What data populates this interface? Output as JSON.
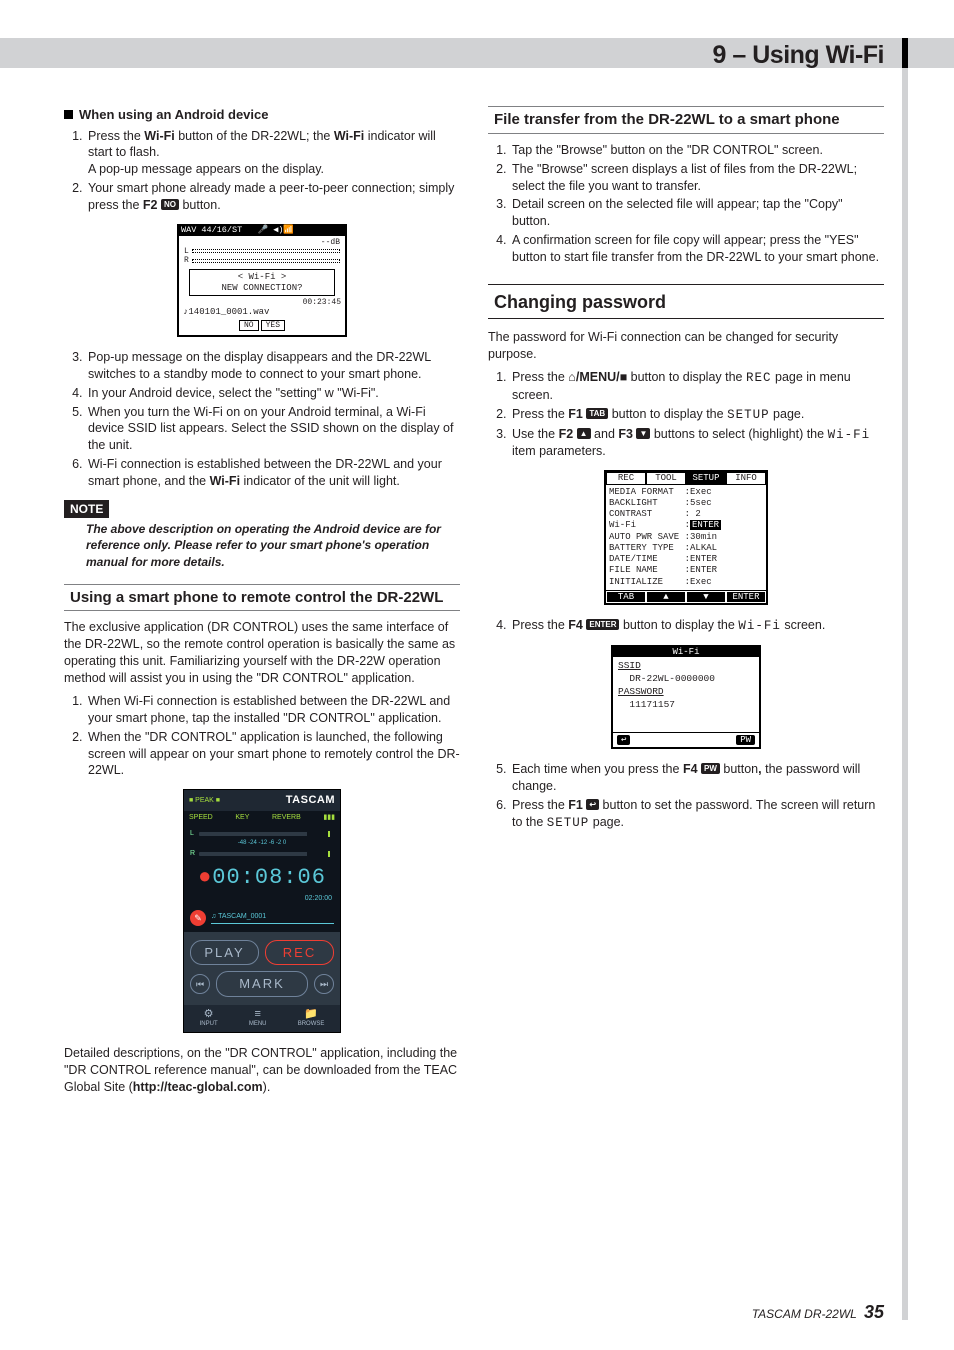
{
  "header": {
    "title": "9 – Using Wi-Fi"
  },
  "left": {
    "android_heading": "When using an Android device",
    "step1_a": "Press the ",
    "step1_b": "Wi-Fi",
    "step1_c": " button of the DR-22WL; the ",
    "step1_d": "Wi-Fi",
    "step1_e": " indicator will start to flash.",
    "step1_sub": "A pop-up message appears on the display.",
    "step2_a": "Your smart phone already made a peer-to-peer connection; simply press the ",
    "step2_b": "F2",
    "step2_c": " button.",
    "popup": {
      "top": "WAV 44/16/ST   🎤 ◀)📶",
      "db": "--dB",
      "dlg1": "< Wi-Fi >",
      "dlg2": "NEW CONNECTION?",
      "stat": "00:23:45",
      "file": "♪140101_0001.wav",
      "btn_no": "NO",
      "btn_yes": "YES"
    },
    "step3": "Pop-up message on the display disappears and the DR-22WL switches to a standby mode to connect to your smart phone.",
    "step4": "In your Android device, select the \"setting\" w \"Wi-Fi\".",
    "step5": "When you turn the Wi-Fi on on your Android terminal, a Wi-Fi device SSID list appears. Select the SSID shown on the display of the unit.",
    "step6_a": "Wi-Fi connection is established between the DR-22WL and your smart phone, and the ",
    "step6_b": "Wi-Fi",
    "step6_c": " indicator of the unit will light.",
    "note_label": "NOTE",
    "note_text": "The above description on operating the Android device are for reference only. Please refer to your smart phone's operation manual for more details.",
    "remote_heading": "Using a smart phone to remote control the DR-22WL",
    "remote_intro": "The exclusive application (DR CONTROL) uses the same interface of the DR-22WL, so the remote control operation is basically the same as operating this unit. Familiarizing yourself with the DR-22W operation method will assist you in using the \"DR CONTROL\" application.",
    "remote_s1": "When Wi-Fi connection is established between the DR-22WL and your smart phone, tap the installed \"DR CONTROL\" application.",
    "remote_s2": "When the \"DR CONTROL\" application is launched, the following screen will appear on your smart phone to remotely control the DR-22WL.",
    "app": {
      "brand": "TASCAM",
      "peak": "■ PEAK ■",
      "speed": "SPEED",
      "key": "KEY",
      "reverb": "REVERB",
      "batt": "▮▮▮",
      "scale": "-48   -24   -12   -6   -2   0",
      "time": "00:08:06",
      "subtime": "02:20:00",
      "track": "♫ TASCAM_0001",
      "play": "PLAY",
      "rec": "REC",
      "mark": "MARK",
      "prev": "⏮",
      "next": "⏭",
      "input": "INPUT",
      "menu": "MENU",
      "browse": "BROWSE",
      "ic_input": "⚙",
      "ic_menu": "≡",
      "ic_browse": "📁"
    },
    "remote_out_a": "Detailed descriptions, on the \"DR CONTROL\" application, including the \"DR CONTROL reference manual\", can be downloaded from the TEAC Global Site (",
    "remote_out_b": "http://teac-global.com",
    "remote_out_c": ")."
  },
  "right": {
    "ft_heading": "File transfer from the DR-22WL to a smart phone",
    "ft1": "Tap the \"Browse\" button on the \"DR CONTROL\" screen.",
    "ft2": "The \"Browse\" screen displays a list of files from the DR-22WL; select the file you want to transfer.",
    "ft3": "Detail screen on the selected file will appear; tap the \"Copy\" button.",
    "ft4": "A confirmation screen for file copy will appear; press the \"YES\" button to start file transfer from the DR-22WL to your smart phone.",
    "cp_heading": "Changing password",
    "cp_intro": "The password for Wi-Fi connection can be changed for security purpose.",
    "cp1_a": "Press the ",
    "cp1_b": "/MENU/",
    "cp1_c": " button to display the ",
    "cp1_d": "REC",
    "cp1_e": " page in menu screen.",
    "cp2_a": "Press the ",
    "cp2_b": "F1",
    "cp2_c": " button to display the ",
    "cp2_d": "SETUP",
    "cp2_e": " page.",
    "cp3_a": "Use the ",
    "cp3_b": "F2",
    "cp3_c": " and ",
    "cp3_d": "F3",
    "cp3_e": " buttons to select (highlight) the ",
    "cp3_f": "Wi-Fi",
    "cp3_g": " item parameters.",
    "setup": {
      "tabs": [
        "REC",
        "TOOL",
        "SETUP",
        "INFO"
      ],
      "rows": [
        "MEDIA FORMAT  :Exec",
        "BACKLIGHT     :5sec",
        "CONTRAST      : 2",
        "Wi-Fi         :",
        "AUTO PWR SAVE :30min",
        "BATTERY TYPE  :ALKAL",
        "DATE/TIME     :ENTER",
        "FILE NAME     :ENTER",
        "INITIALIZE    :Exec"
      ],
      "wifi_val": "ENTER",
      "foot": [
        "TAB",
        "▲",
        "▼",
        "ENTER"
      ]
    },
    "cp4_a": "Press the ",
    "cp4_b": "F4",
    "cp4_c": " button to display the ",
    "cp4_d": "Wi-Fi",
    "cp4_e": " screen.",
    "wifi_lcd": {
      "title": "Wi-Fi",
      "ssid_lbl": "SSID",
      "ssid_val": "  DR-22WL-0000000",
      "pw_lbl": "PASSWORD",
      "pw_val": "  11171157",
      "back": "↩",
      "pw_ic": "PW"
    },
    "cp5_a": "Each time when you press the ",
    "cp5_b": "F4",
    "cp5_c": " button",
    "cp5_d": ",",
    "cp5_e": " the password will change.",
    "cp6_a": "Press the ",
    "cp6_b": "F1",
    "cp6_c": " button to set the password. The screen will return to the ",
    "cp6_d": "SETUP",
    "cp6_e": " page."
  },
  "footer": {
    "product": "TASCAM  DR-22WL",
    "page": "35"
  }
}
